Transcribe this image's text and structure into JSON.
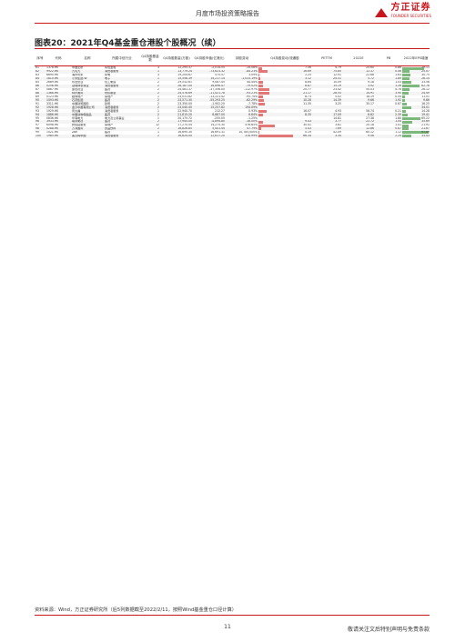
{
  "header": {
    "title": "月度市场投资策略报告",
    "logo_cn": "方正证券",
    "logo_en": "FOUNDER SECURITIES"
  },
  "figure": {
    "title": "图表20：2021年Q4基金重仓港股个股概况（续）",
    "columns": [
      "序号",
      "代码",
      "名称",
      "所属中信行业",
      "Q4持股基金数",
      "Q4持股数量(万股)",
      "Q4持股市值(亿港元)",
      "持股变动",
      "Q4持股变动/流通股",
      "PETTM",
      "2022E",
      "PB",
      "2022年EPS增速"
    ],
    "rows": [
      [
        "81",
        "1378.HK",
        "中国宏桥",
        "有色金属",
        "3",
        "12,295.37",
        "-2,014.55",
        "-14.08%",
        "7.56",
        "4.79",
        "25.60",
        "0.86",
        "79.11"
      ],
      [
        "82",
        "9922.HK",
        "九毛九",
        "消费者服务",
        "1",
        "13,779.24",
        "-73,623.32",
        "-84.23%",
        "16.69",
        "75.85",
        "12.37",
        "0.06",
        "25.07"
      ],
      [
        "83",
        "6690.HK",
        "海尔智家",
        "家电",
        "3",
        "19,204.67",
        "575.57",
        "3.09%",
        "2.25",
        "12.91",
        "22.68",
        "1.63",
        "30.75"
      ],
      [
        "84",
        "1810.HK",
        "小米集团-W",
        "电子",
        "1",
        "15,556.39",
        "14,217.14",
        "-1,033.19%",
        "3.12",
        "24.51",
        "5.72",
        "1.89",
        "26.14"
      ],
      [
        "85",
        "2689.HK",
        "玖龙纸业",
        "轻工制造",
        "2",
        "29,532.61",
        "9,087.45",
        "44.44%",
        "8.64",
        "10.09",
        "9.18",
        "1.03",
        "33.56"
      ],
      [
        "86",
        "0256.HK",
        "冠城钟表珠宝",
        "消费者服务",
        "2",
        "26,187.00",
        "16,896.47",
        "-79.02%",
        "8.87",
        "15.19",
        "3.92",
        "1.26",
        "62.78"
      ],
      [
        "87",
        "0867.HK",
        "康哲药业",
        "医药",
        "2",
        "24,481.37",
        "-37,356.00",
        "-112.97%",
        "20.77",
        "23.42",
        "50.03",
        "4.78",
        "26.12"
      ],
      [
        "88",
        "1368.HK",
        "特步国际",
        "纺织服装",
        "2",
        "24,578.69",
        "-11,421.78",
        "-93.21%",
        "21.17",
        "28.55",
        "14.91",
        "3.90",
        "24.49"
      ],
      [
        "89",
        "0123.HK",
        "越秀地产",
        "房地产",
        "1",
        "23,031.82",
        "-13,221.42",
        "-95.74%",
        "8.73",
        "5.02",
        "18.19",
        "0.54",
        "11.01"
      ],
      [
        "90",
        "1093.HK",
        "石药集团",
        "医药",
        "2",
        "23,571.30",
        "-55,293.25",
        "-62.29%",
        "10.28",
        "14.39",
        "9.66",
        "1.92",
        "9.66"
      ],
      [
        "91",
        "3311.HK",
        "中国建筑国际",
        "建筑",
        "2",
        "23,350.00",
        "-1,902.20",
        "-7.78%",
        "11.35",
        "3.25",
        "35.17",
        "0.67",
        "16.25"
      ],
      [
        "92",
        "1928.HK",
        "金沙中国有限公司",
        "消费者服务",
        "2",
        "23,040.45",
        "15,257.82",
        "194.09%",
        "",
        "",
        "",
        "",
        "34.01"
      ],
      [
        "93",
        "1929.HK",
        "周大福",
        "消费者服务",
        "1",
        "22,940.70",
        "212.27",
        "0.93%",
        "16.07",
        "4.93",
        "56.74",
        "0.21",
        "14.28"
      ],
      [
        "94",
        "1886.HK",
        "中国动物保健品",
        "医药",
        "2",
        "21,815.20",
        "8,887.00",
        "6.64%",
        "8.35",
        "17.09",
        "6.82",
        "2.39",
        "19.41"
      ],
      [
        "95",
        "0836.HK",
        "华润电力",
        "电力及公用事业",
        "1",
        "20,175.72",
        "-255.05",
        "-1.25%",
        "",
        "14.81",
        "27.38",
        "1.80",
        "65.22"
      ],
      [
        "96",
        "3933.HK",
        "联邦制药",
        "医药",
        "2",
        "17,945.00",
        "-4,894.80",
        "-18.00%",
        "9.43",
        "3.77",
        "22.72",
        "1.04",
        "35.69"
      ],
      [
        "97",
        "6098.HK",
        "碧桂园服务",
        "房地产",
        "12",
        "17,270.54",
        "14,275.30",
        "476.65%",
        "30.41",
        "3.61",
        "20.18",
        "1.01",
        "21.91"
      ],
      [
        "98",
        "0288.HK",
        "万洲国际",
        "食品饮料",
        "2",
        "16,826.85",
        "5,441.44",
        "47.79%",
        "5.43",
        "7.69",
        "12.86",
        "0.87",
        "21.67"
      ],
      [
        "99",
        "1021.HK",
        "ZBK",
        "医药",
        "1",
        "16,690.30",
        "16,691.31",
        "10,785,000%",
        "0.19",
        "42.09",
        "60.12",
        "1.12",
        "97.89"
      ],
      [
        "100",
        "1985.HK",
        "美高梅中国",
        "消费者服务",
        "2",
        "16,624.00",
        "12,617.20",
        "314.99%",
        "66.34",
        "3.34",
        "9.56",
        "2.24",
        "33.43"
      ]
    ]
  },
  "source_note": "资料来源：Wind，方正证券研究所（后5列数据截至2022/2/11，按照Wind基金重仓口径计算）",
  "footer": {
    "page_number": "11",
    "disclaimer": "敬请关注文后特别声明与免责条款"
  },
  "colors": {
    "brand_red": "#c8161d",
    "neg_bar": "#e27777",
    "pos_bar": "#7cb87c"
  }
}
